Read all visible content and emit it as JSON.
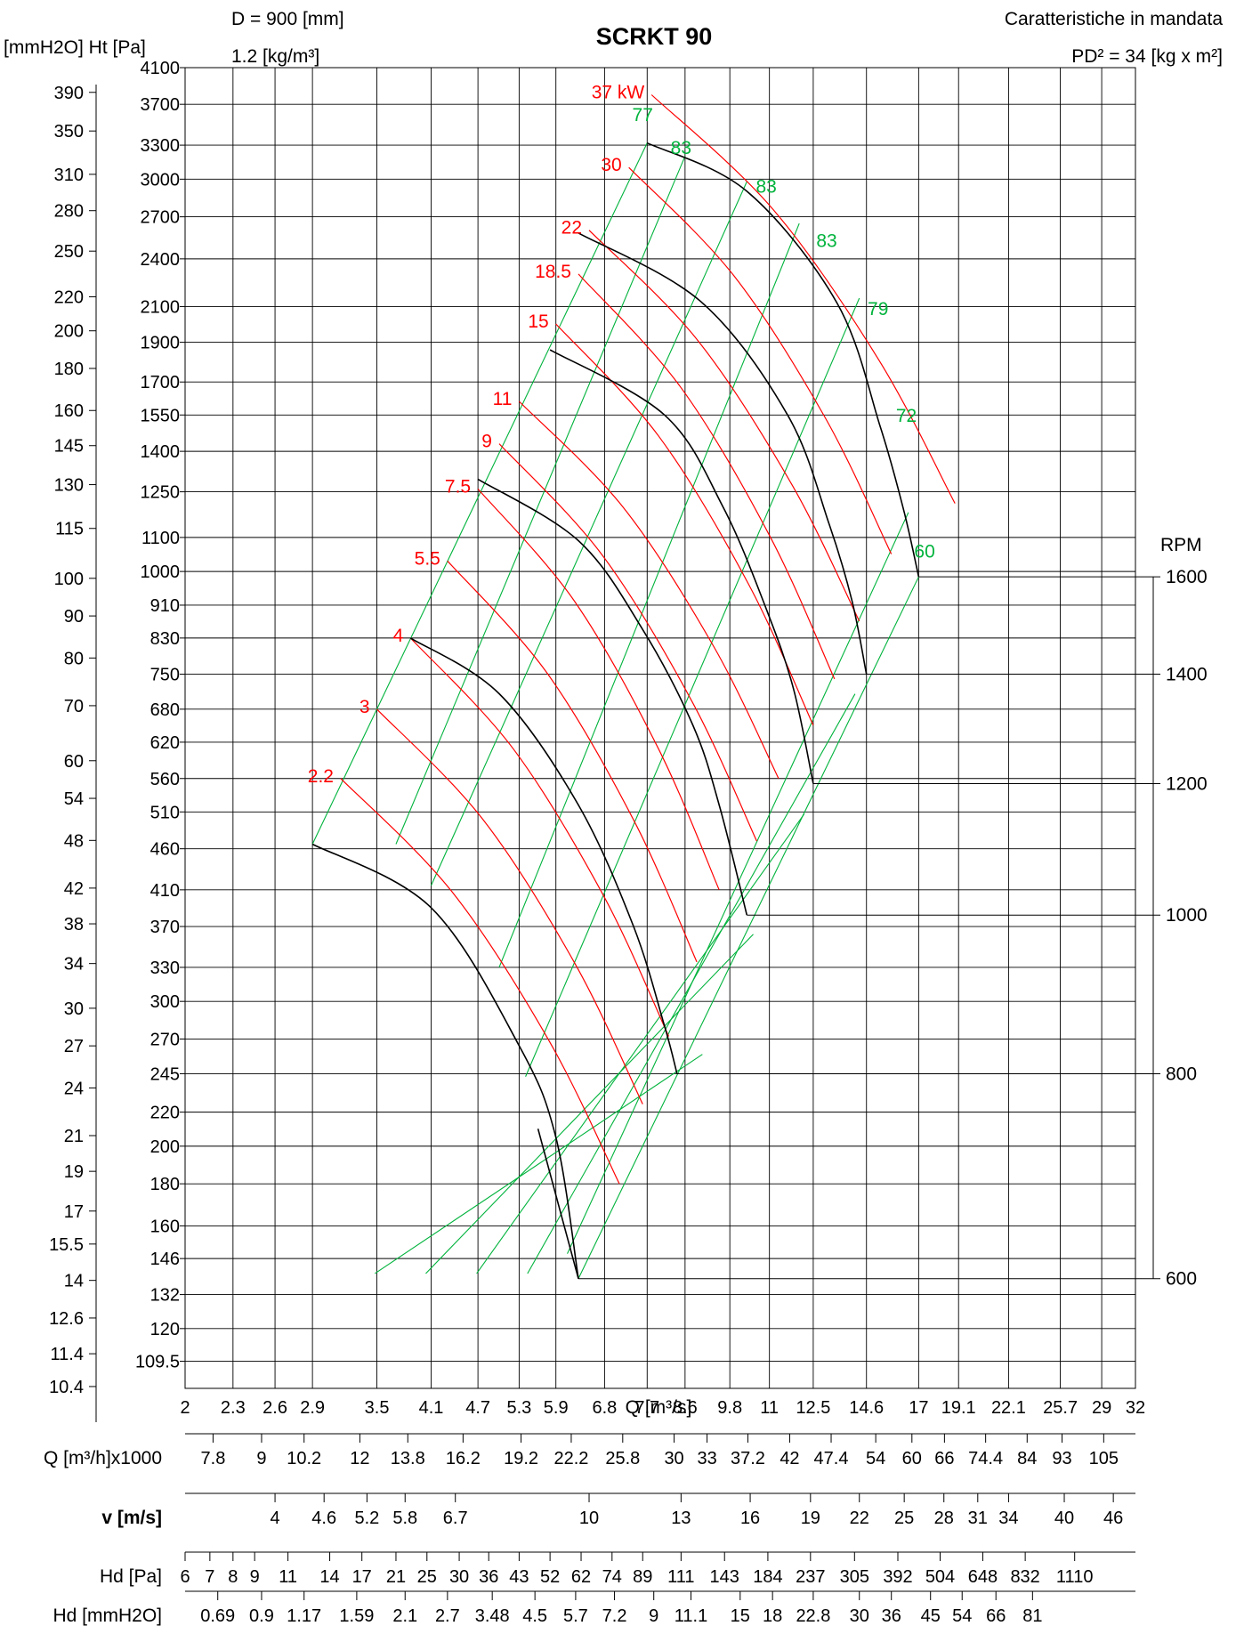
{
  "chart_data": {
    "type": "line",
    "title": "SCRKT 90",
    "header_left": [
      "D = 900 [mm]",
      "1.2 [kg/m³]"
    ],
    "header_right": [
      "Caratteristiche in mandata",
      "PD² = 34 [kg x m²]"
    ],
    "ylabel_left": "[mmH2O] Ht [Pa]",
    "xlabel": "Q [m³/s]",
    "rpm_label": "RPM",
    "x_scale": "log",
    "y_scale": "log",
    "xlim": [
      2,
      32
    ],
    "ylim": [
      101.5,
      4100
    ],
    "x_ticks": [
      2,
      2.3,
      2.6,
      2.9,
      3.5,
      4.1,
      4.7,
      5.3,
      5.9,
      6.8,
      7.7,
      8.6,
      9.8,
      11,
      12.5,
      14.6,
      17,
      19.1,
      22.1,
      25.7,
      29,
      32
    ],
    "x_tick_labels": [
      "2",
      "2.3",
      "2.6",
      "2.9",
      "3.5",
      "4.1",
      "4.7",
      "5.3",
      "5.9",
      "6.8",
      "7.7",
      "8.6",
      "9.8",
      "11",
      "12.5",
      "14.6",
      "17",
      "19.1",
      "22.1",
      "25.7",
      "29",
      "32"
    ],
    "y_ticks_pa": [
      109.5,
      120,
      132,
      146,
      160,
      180,
      200,
      220,
      245,
      270,
      300,
      330,
      370,
      410,
      460,
      510,
      560,
      620,
      680,
      750,
      830,
      910,
      1000,
      1100,
      1250,
      1400,
      1550,
      1700,
      1900,
      2100,
      2400,
      2700,
      3000,
      3300,
      3700,
      4100
    ],
    "y_tick_labels_pa": [
      "109.5",
      "120",
      "132",
      "146",
      "160",
      "180",
      "200",
      "220",
      "245",
      "270",
      "300",
      "330",
      "370",
      "410",
      "460",
      "510",
      "560",
      "620",
      "680",
      "750",
      "830",
      "910",
      "1000",
      "1100",
      "1250",
      "1400",
      "1550",
      "1700",
      "1900",
      "2100",
      "2400",
      "2700",
      "3000",
      "3300",
      "3700",
      "4100"
    ],
    "y_ticks_mm": [
      10.4,
      11.4,
      12.6,
      14,
      15.5,
      17,
      19,
      21,
      24,
      27,
      30,
      34,
      38,
      42,
      48,
      54,
      60,
      70,
      80,
      90,
      100,
      115,
      130,
      145,
      160,
      180,
      200,
      220,
      250,
      280,
      310,
      350,
      390
    ],
    "y_tick_labels_mm": [
      "10.4",
      "11.4",
      "12.6",
      "14",
      "15.5",
      "17",
      "19",
      "21",
      "24",
      "27",
      "30",
      "34",
      "38",
      "42",
      "48",
      "54",
      "60",
      "70",
      "80",
      "90",
      "100",
      "115",
      "130",
      "145",
      "160",
      "180",
      "200",
      "220",
      "250",
      "280",
      "310",
      "350",
      "390"
    ],
    "rpm_curves": [
      {
        "name": "600",
        "end": [
          6.3,
          138
        ],
        "points": [
          [
            5.6,
            210
          ],
          [
            6.3,
            138
          ]
        ]
      },
      {
        "name": "800",
        "end": [
          8.4,
          245
        ],
        "points": [
          [
            2.9,
            466
          ],
          [
            4.1,
            390
          ],
          [
            5.3,
            265
          ],
          [
            5.9,
            205
          ],
          [
            6.3,
            138
          ]
        ]
      },
      {
        "name": "1000",
        "end": [
          10.3,
          382
        ],
        "points": [
          [
            3.86,
            830
          ],
          [
            5.0,
            710
          ],
          [
            6.3,
            520
          ],
          [
            7.4,
            370
          ],
          [
            8.1,
            280
          ],
          [
            8.4,
            245
          ]
        ]
      },
      {
        "name": "1200",
        "end": [
          12.5,
          552
        ],
        "points": [
          [
            4.7,
            1295
          ],
          [
            6.3,
            1090
          ],
          [
            7.6,
            850
          ],
          [
            8.8,
            650
          ],
          [
            9.5,
            520
          ],
          [
            10.3,
            382
          ]
        ]
      },
      {
        "name": "1400",
        "end": [
          14.6,
          750
        ],
        "points": [
          [
            5.8,
            1860
          ],
          [
            8.1,
            1550
          ],
          [
            9.6,
            1200
          ],
          [
            10.9,
            900
          ],
          [
            11.8,
            720
          ],
          [
            12.5,
            552
          ]
        ]
      },
      {
        "name": "1600",
        "end": [
          17.0,
          985
        ],
        "points": [
          [
            6.3,
            2580
          ],
          [
            9.0,
            2130
          ],
          [
            11.6,
            1550
          ],
          [
            13.1,
            1140
          ],
          [
            14.0,
            920
          ],
          [
            14.6,
            750
          ]
        ]
      }
    ],
    "rpm_curve_top": {
      "points": [
        [
          7.7,
          3320
        ],
        [
          10.3,
          2900
        ],
        [
          13.4,
          2120
        ],
        [
          15.2,
          1500
        ],
        [
          16.3,
          1180
        ],
        [
          17.0,
          985
        ]
      ]
    },
    "rpm_lines": [
      {
        "name": "600",
        "from": [
          6.3,
          138
        ]
      },
      {
        "name": "800",
        "from": [
          8.4,
          245
        ]
      },
      {
        "name": "1000",
        "from": [
          10.3,
          382
        ]
      },
      {
        "name": "1200",
        "from": [
          12.5,
          552
        ]
      },
      {
        "name": "1400",
        "from": [
          14.6,
          750
        ]
      },
      {
        "name": "1600",
        "from": [
          17.0,
          985
        ]
      }
    ],
    "power_curves": [
      {
        "label": "2.2",
        "start": [
          3.15,
          560
        ],
        "end": [
          7.1,
          180
        ]
      },
      {
        "label": "3",
        "start": [
          3.5,
          680
        ],
        "end": [
          7.6,
          225
        ]
      },
      {
        "label": "4",
        "start": [
          3.86,
          830
        ],
        "end": [
          8.2,
          272
        ]
      },
      {
        "label": "5.5",
        "start": [
          4.3,
          1030
        ],
        "end": [
          8.9,
          335
        ]
      },
      {
        "label": "7.5",
        "start": [
          4.7,
          1260
        ],
        "end": [
          9.5,
          410
        ]
      },
      {
        "label": "9",
        "start": [
          5.0,
          1430
        ],
        "end": [
          10.6,
          470
        ]
      },
      {
        "label": "11",
        "start": [
          5.3,
          1610
        ],
        "end": [
          11.3,
          560
        ]
      },
      {
        "label": "15",
        "start": [
          5.9,
          2000
        ],
        "end": [
          12.5,
          650
        ]
      },
      {
        "label": "18.5",
        "start": [
          6.3,
          2300
        ],
        "end": [
          13.3,
          740
        ]
      },
      {
        "label": "22",
        "start": [
          6.5,
          2600
        ],
        "end": [
          14.3,
          870
        ]
      },
      {
        "label": "30",
        "start": [
          7.3,
          3100
        ],
        "end": [
          15.7,
          1050
        ]
      },
      {
        "label": "37 kW",
        "start": [
          7.8,
          3800
        ],
        "end": [
          18.9,
          1210
        ]
      }
    ],
    "efficiency_lines": [
      {
        "label": "77",
        "start": [
          2.9,
          466
        ],
        "end": [
          7.7,
          3320
        ]
      },
      {
        "label": "83",
        "start": [
          3.7,
          466
        ],
        "end": [
          8.6,
          3200
        ]
      },
      {
        "label": "83",
        "start": [
          4.1,
          415
        ],
        "end": [
          10.3,
          2980
        ]
      },
      {
        "label": "83",
        "start": [
          5.0,
          330
        ],
        "end": [
          12.0,
          2650
        ]
      },
      {
        "label": "79",
        "start": [
          5.4,
          243
        ],
        "end": [
          14.3,
          2150
        ]
      },
      {
        "label": "72",
        "start": [
          6.3,
          138
        ],
        "end": [
          17.0,
          985
        ]
      },
      {
        "label": "60",
        "start": [
          6.1,
          148
        ],
        "end": [
          16.5,
          1180
        ]
      }
    ],
    "efficiency_labels": [
      {
        "label": "77",
        "at": [
          7.6,
          3530
        ]
      },
      {
        "label": "83",
        "at": [
          8.5,
          3220
        ]
      },
      {
        "label": "83",
        "at": [
          10.9,
          2890
        ]
      },
      {
        "label": "83",
        "at": [
          13.0,
          2480
        ]
      },
      {
        "label": "79",
        "at": [
          15.1,
          2050
        ]
      },
      {
        "label": "72",
        "at": [
          16.4,
          1520
        ]
      },
      {
        "label": "60",
        "at": [
          17.3,
          1040
        ]
      }
    ],
    "tables": [
      {
        "label": "Q [m³/h]x1000",
        "values": [
          "7.8",
          "9",
          "10.2",
          "12",
          "13.8",
          "16.2",
          "19.2",
          "22.2",
          "25.8",
          "30",
          "33",
          "37.2",
          "42",
          "47.4",
          "54",
          "60",
          "66",
          "74.4",
          "84",
          "93",
          "105"
        ],
        "x": [
          2.17,
          2.5,
          2.83,
          3.33,
          3.83,
          4.5,
          5.33,
          6.17,
          7.17,
          8.33,
          9.17,
          10.33,
          11.67,
          13.17,
          15.0,
          16.67,
          18.33,
          20.67,
          23.33,
          25.83,
          29.17
        ]
      },
      {
        "label": "v [m/s]",
        "values": [
          "4",
          "4.6",
          "5.2",
          "5.8",
          "6.7",
          "10",
          "13",
          "16",
          "19",
          "22",
          "25",
          "28",
          "31",
          "34",
          "40",
          "46"
        ],
        "x": [
          2.6,
          3.0,
          3.4,
          3.8,
          4.4,
          6.5,
          8.5,
          10.4,
          12.4,
          14.3,
          16.3,
          18.3,
          20.2,
          22.1,
          26.0,
          30.0
        ]
      },
      {
        "label": "Hd [Pa]",
        "values": [
          "6",
          "7",
          "8",
          "9",
          "11",
          "14",
          "17",
          "21",
          "25",
          "30",
          "36",
          "43",
          "52",
          "62",
          "74",
          "89",
          "111",
          "143",
          "184",
          "237",
          "305",
          "392",
          "504",
          "648",
          "832",
          "1110"
        ],
        "x": [
          2.0,
          2.15,
          2.3,
          2.45,
          2.7,
          3.05,
          3.35,
          3.7,
          4.05,
          4.45,
          4.85,
          5.3,
          5.8,
          6.35,
          6.95,
          7.6,
          8.5,
          9.65,
          10.95,
          12.4,
          14.1,
          16.0,
          18.1,
          20.5,
          23.2,
          26.8
        ]
      },
      {
        "label": "Hd [mmH2O]",
        "values": [
          "0.69",
          "0.9",
          "1.17",
          "1.59",
          "2.1",
          "2.7",
          "3.48",
          "4.5",
          "5.7",
          "7.2",
          "9",
          "11.1",
          "15",
          "18",
          "22.8",
          "30",
          "36",
          "45",
          "54",
          "66",
          "81"
        ],
        "x": [
          2.2,
          2.5,
          2.83,
          3.3,
          3.8,
          4.3,
          4.9,
          5.55,
          6.25,
          7.0,
          7.85,
          8.75,
          10.1,
          11.1,
          12.5,
          14.3,
          15.7,
          17.6,
          19.3,
          21.3,
          23.7
        ]
      }
    ],
    "colors": {
      "rpm": "#000000",
      "power": "#ff0000",
      "efficiency": "#00b33c",
      "grid": "#000000"
    }
  }
}
